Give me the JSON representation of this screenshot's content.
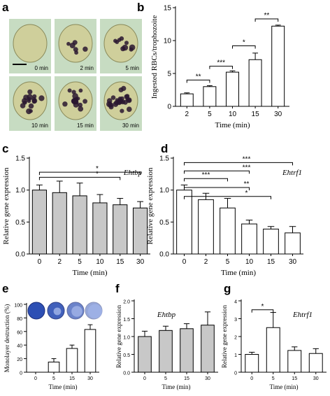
{
  "panel_labels": {
    "a": "a",
    "b": "b",
    "c": "c",
    "d": "d",
    "e": "e",
    "f": "f",
    "g": "g"
  },
  "micrographs": {
    "time_labels": [
      "0 min",
      "2 min",
      "5 min",
      "10 min",
      "15 min",
      "30 min"
    ],
    "inclusions": [
      0,
      6,
      9,
      16,
      20,
      24
    ]
  },
  "colors": {
    "bar_open": "#ffffff",
    "bar_gray": "#c8c8c8",
    "stroke": "#000000",
    "cell_bg": "#c7dcc2",
    "cell_body": "#cfcf9b",
    "inclusion": "#2a1830",
    "well_blue": "#2d4fb4",
    "well_light": "#9fb1e6"
  },
  "chart_data": [
    {
      "id": "b",
      "type": "bar",
      "fill": "open",
      "categories": [
        "2",
        "5",
        "10",
        "15",
        "30"
      ],
      "values": [
        1.9,
        3.0,
        5.2,
        7.1,
        12.2
      ],
      "errors": [
        0.15,
        0.15,
        0.2,
        1.0,
        0.15
      ],
      "xlabel": "Time (min)",
      "ylabel": "Ingested RBCs/trophozoite",
      "ylim": [
        0,
        15
      ],
      "yticks": [
        "0",
        "5",
        "10",
        "15"
      ],
      "sig": [
        {
          "from": 0,
          "to": 1,
          "y": 4.0,
          "label": "**"
        },
        {
          "from": 1,
          "to": 2,
          "y": 6.1,
          "label": "***"
        },
        {
          "from": 2,
          "to": 3,
          "y": 9.2,
          "label": "*"
        },
        {
          "from": 3,
          "to": 4,
          "y": 13.3,
          "label": "**"
        }
      ]
    },
    {
      "id": "c",
      "type": "bar",
      "fill": "gray",
      "categories": [
        "0",
        "2",
        "5",
        "10",
        "15",
        "30"
      ],
      "values": [
        1.0,
        0.96,
        0.91,
        0.8,
        0.77,
        0.72
      ],
      "errors": [
        0.08,
        0.18,
        0.2,
        0.13,
        0.1,
        0.1
      ],
      "xlabel": "Time (min)",
      "ylabel": "Relative gene expression",
      "gene": "Ehtbp",
      "ylim": [
        0,
        1.5
      ],
      "yticks": [
        "0.0",
        "0.5",
        "1.0",
        "1.5"
      ],
      "sig": [
        {
          "from": 0,
          "to": 4,
          "y": 1.2,
          "label": "*"
        },
        {
          "from": 0,
          "to": 5,
          "y": 1.28,
          "label": "*"
        }
      ]
    },
    {
      "id": "d",
      "type": "bar",
      "fill": "open",
      "categories": [
        "0",
        "2",
        "5",
        "10",
        "15",
        "30"
      ],
      "values": [
        1.0,
        0.85,
        0.72,
        0.47,
        0.39,
        0.33
      ],
      "errors": [
        0.08,
        0.1,
        0.15,
        0.06,
        0.04,
        0.1
      ],
      "xlabel": "Time (min)",
      "ylabel": "Relative gene expression",
      "gene": "Ehtrf1",
      "ylim": [
        0,
        1.5
      ],
      "yticks": [
        "0.0",
        "0.5",
        "1.0",
        "1.5"
      ],
      "sig": [
        {
          "from": 0,
          "to": 4,
          "y": 0.9,
          "label": "*"
        },
        {
          "from": 0,
          "to": 3,
          "y": 1.04,
          "label": "**"
        },
        {
          "from": 0,
          "to": 2,
          "y": 1.18,
          "label": "***"
        },
        {
          "from": 0,
          "to": 3,
          "y": 1.3,
          "label": "***"
        },
        {
          "from": 0,
          "to": 5,
          "y": 1.43,
          "label": "***"
        }
      ]
    },
    {
      "id": "e",
      "type": "bar",
      "fill": "open",
      "categories": [
        "0",
        "5",
        "15",
        "30"
      ],
      "values": [
        0,
        15,
        35,
        63
      ],
      "errors": [
        0,
        5,
        5,
        7
      ],
      "xlabel": "Time (min)",
      "ylabel": "Monolayer destruction (%)",
      "ylim": [
        0,
        100
      ],
      "yticks": [
        "0",
        "20",
        "40",
        "60",
        "80",
        "100"
      ],
      "sig": []
    },
    {
      "id": "f",
      "type": "bar",
      "fill": "gray",
      "categories": [
        "0",
        "5",
        "15",
        "30"
      ],
      "values": [
        1.0,
        1.17,
        1.22,
        1.32
      ],
      "errors": [
        0.15,
        0.12,
        0.14,
        0.37
      ],
      "xlabel": "Time (min)",
      "ylabel": "Relative gene expression",
      "gene": "Ehtbp",
      "ylim": [
        0,
        2.0
      ],
      "yticks": [
        "0.0",
        "0.5",
        "1.0",
        "1.5",
        "2.0"
      ],
      "sig": []
    },
    {
      "id": "g",
      "type": "bar",
      "fill": "open",
      "categories": [
        "0",
        "5",
        "15",
        "30"
      ],
      "values": [
        1.0,
        2.5,
        1.22,
        1.05
      ],
      "errors": [
        0.12,
        0.85,
        0.2,
        0.27
      ],
      "xlabel": "Time (min)",
      "ylabel": "Relative gene expression",
      "gene": "Ehtrf1",
      "ylim": [
        0,
        4
      ],
      "yticks": [
        "0",
        "1",
        "2",
        "3",
        "4"
      ],
      "sig": [
        {
          "from": 0,
          "to": 1,
          "y": 3.5,
          "label": "*"
        }
      ]
    }
  ]
}
